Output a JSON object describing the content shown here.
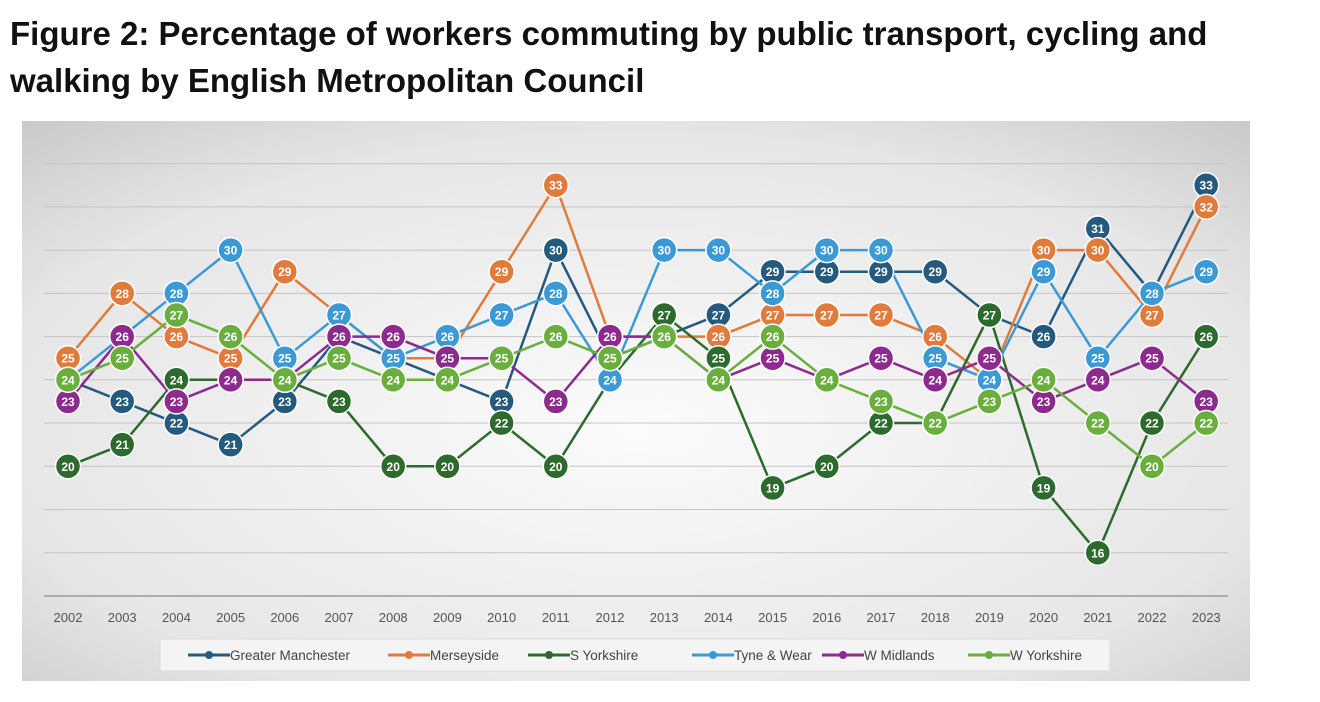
{
  "title": "Figure 2: Percentage of workers commuting by public transport, cycling and walking by English Metropolitan Council",
  "chart_data": {
    "type": "line",
    "title": "Figure 2: Percentage of workers commuting by public transport, cycling and walking by English Metropolitan Council",
    "xlabel": "",
    "ylabel": "",
    "ylim": [
      14,
      35
    ],
    "grid": true,
    "legend": "bottom",
    "x": [
      "2002",
      "2003",
      "2004",
      "2005",
      "2006",
      "2007",
      "2008",
      "2009",
      "2010",
      "2011",
      "2012",
      "2013",
      "2014",
      "2015",
      "2016",
      "2017",
      "2018",
      "2019",
      "2020",
      "2021",
      "2022",
      "2023"
    ],
    "series": [
      {
        "name": "Greater Manchester",
        "color": "#235a7d",
        "values": [
          24,
          23,
          22,
          21,
          23,
          26,
          25,
          24,
          23,
          30,
          25,
          26,
          27,
          29,
          29,
          29,
          29,
          27,
          26,
          31,
          28,
          33
        ]
      },
      {
        "name": "Merseyside",
        "color": "#e07b3c",
        "values": [
          25,
          28,
          26,
          25,
          29,
          27,
          25,
          25,
          29,
          33,
          26,
          26,
          26,
          27,
          27,
          27,
          26,
          24,
          30,
          30,
          27,
          32
        ]
      },
      {
        "name": "S Yorkshire",
        "color": "#2d6a2e",
        "values": [
          20,
          21,
          24,
          24,
          24,
          23,
          20,
          20,
          22,
          20,
          24,
          27,
          25,
          19,
          20,
          22,
          22,
          27,
          19,
          16,
          22,
          26
        ]
      },
      {
        "name": "Tyne & Wear",
        "color": "#3b9ad5",
        "values": [
          24,
          26,
          28,
          30,
          25,
          27,
          25,
          26,
          27,
          28,
          24,
          30,
          30,
          28,
          30,
          30,
          25,
          24,
          29,
          25,
          28,
          29
        ]
      },
      {
        "name": "W Midlands",
        "color": "#8c2a8e",
        "values": [
          23,
          26,
          23,
          24,
          24,
          26,
          26,
          25,
          25,
          23,
          26,
          26,
          24,
          25,
          24,
          25,
          24,
          25,
          23,
          24,
          25,
          23
        ]
      },
      {
        "name": "W Yorkshire",
        "color": "#6aae3e",
        "values": [
          24,
          25,
          27,
          26,
          24,
          25,
          24,
          24,
          25,
          26,
          25,
          26,
          24,
          26,
          24,
          23,
          22,
          23,
          24,
          22,
          20,
          22
        ]
      }
    ]
  }
}
